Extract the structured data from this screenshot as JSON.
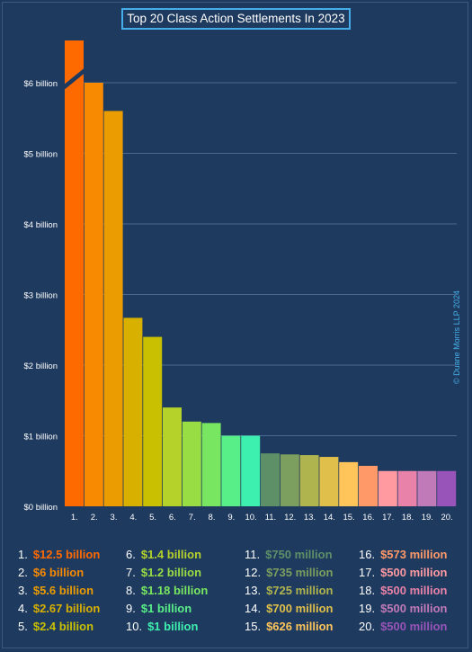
{
  "title": "Top 20 Class Action Settlements In 2023",
  "watermark": "© Duane Morris LLP 2024",
  "chart_data": {
    "type": "bar",
    "categories": [
      "1.",
      "2.",
      "3.",
      "4.",
      "5.",
      "6.",
      "7.",
      "8.",
      "9.",
      "10.",
      "11.",
      "12.",
      "13.",
      "14.",
      "15.",
      "16.",
      "17.",
      "18.",
      "19.",
      "20."
    ],
    "values": [
      12.5,
      6,
      5.6,
      2.67,
      2.4,
      1.4,
      1.2,
      1.18,
      1,
      1,
      0.75,
      0.735,
      0.725,
      0.7,
      0.626,
      0.573,
      0.5,
      0.5,
      0.5,
      0.5
    ],
    "colors": [
      "#ff6a00",
      "#f78a00",
      "#eb9c00",
      "#d7b000",
      "#c8c000",
      "#b5d22a",
      "#98dd44",
      "#78e660",
      "#58ee88",
      "#3ef0b0",
      "#5e9068",
      "#7c9e5e",
      "#b0b44e",
      "#e0c04a",
      "#ffc55a",
      "#ff9a68",
      "#ff9aa0",
      "#e882a8",
      "#c07ab8",
      "#9854b8"
    ],
    "ylim": [
      0,
      6.6
    ],
    "axis_break": true,
    "yticks": [
      {
        "value": 0,
        "label": "$0 billion"
      },
      {
        "value": 1,
        "label": "$1 billion"
      },
      {
        "value": 2,
        "label": "$2 billion"
      },
      {
        "value": 3,
        "label": "$3 billion"
      },
      {
        "value": 4,
        "label": "$4 billion"
      },
      {
        "value": 5,
        "label": "$5 billion"
      },
      {
        "value": 6,
        "label": "$6 billion"
      }
    ],
    "grid": true,
    "legend_position": "bottom",
    "legend": [
      {
        "num": "1.",
        "label": "$12.5 billion"
      },
      {
        "num": "2.",
        "label": "$6 billion"
      },
      {
        "num": "3.",
        "label": "$5.6 billion"
      },
      {
        "num": "4.",
        "label": "$2.67 billion"
      },
      {
        "num": "5.",
        "label": "$2.4 billion"
      },
      {
        "num": "6.",
        "label": "$1.4 billion"
      },
      {
        "num": "7.",
        "label": "$1.2 billion"
      },
      {
        "num": "8.",
        "label": "$1.18 billion"
      },
      {
        "num": "9.",
        "label": "$1 billion"
      },
      {
        "num": "10.",
        "label": "$1 billion"
      },
      {
        "num": "11.",
        "label": "$750 million"
      },
      {
        "num": "12.",
        "label": "$735 million"
      },
      {
        "num": "13.",
        "label": "$725 million"
      },
      {
        "num": "14.",
        "label": "$700 million"
      },
      {
        "num": "15.",
        "label": "$626 million"
      },
      {
        "num": "16.",
        "label": "$573 million"
      },
      {
        "num": "17.",
        "label": "$500 million"
      },
      {
        "num": "18.",
        "label": "$500 million"
      },
      {
        "num": "19.",
        "label": "$500 million"
      },
      {
        "num": "20.",
        "label": "$500 million"
      }
    ]
  }
}
